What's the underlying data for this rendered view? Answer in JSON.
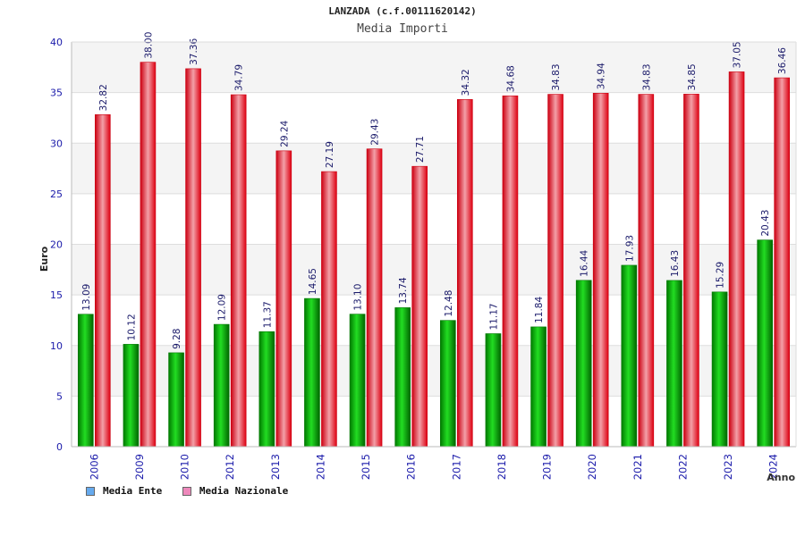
{
  "header": {
    "title": "LANZADA (c.f.00111620142)",
    "subtitle": "Media Importi"
  },
  "legend": {
    "series1": "Media Ente",
    "series2": "Media Nazionale"
  },
  "colors": {
    "ente": "#00aa00",
    "nazionale": "#ee1122",
    "ente_legend": "#66aaee",
    "nazionale_legend": "#ee88bb",
    "axis_text": "#1a1aaa",
    "label_text": "#1a1a6a"
  },
  "chart_data": {
    "type": "bar",
    "title": "LANZADA (c.f.00111620142)",
    "subtitle": "Media Importi",
    "xlabel": "Anno",
    "ylabel": "Euro",
    "ylim": [
      0,
      40
    ],
    "yticks": [
      0,
      5,
      10,
      15,
      20,
      25,
      30,
      35,
      40
    ],
    "grid": true,
    "legend_position": "bottom-left",
    "categories": [
      "2006",
      "2009",
      "2010",
      "2012",
      "2013",
      "2014",
      "2015",
      "2016",
      "2017",
      "2018",
      "2019",
      "2020",
      "2021",
      "2022",
      "2023",
      "2024"
    ],
    "series": [
      {
        "name": "Media Ente",
        "values": [
          13.09,
          10.12,
          9.28,
          12.09,
          11.37,
          14.65,
          13.1,
          13.74,
          12.48,
          11.17,
          11.84,
          16.44,
          17.93,
          16.43,
          15.29,
          20.43
        ],
        "labels": [
          "13.09",
          "10.12",
          "9.28",
          "12.09",
          "11.37",
          "14.65",
          "13.10",
          "13.74",
          "12.48",
          "11.17",
          "11.84",
          "16.44",
          "17.93",
          "16.43",
          "15.29",
          "20.43"
        ]
      },
      {
        "name": "Media Nazionale",
        "values": [
          32.82,
          38.0,
          37.36,
          34.79,
          29.24,
          27.19,
          29.43,
          27.71,
          34.32,
          34.68,
          34.83,
          34.94,
          34.83,
          34.85,
          37.05,
          36.46
        ],
        "labels": [
          "32.82",
          "38.00",
          "37.36",
          "34.79",
          "29.24",
          "27.19",
          "29.43",
          "27.71",
          "34.32",
          "34.68",
          "34.83",
          "34.94",
          "34.83",
          "34.85",
          "37.05",
          "36.46"
        ]
      }
    ]
  }
}
